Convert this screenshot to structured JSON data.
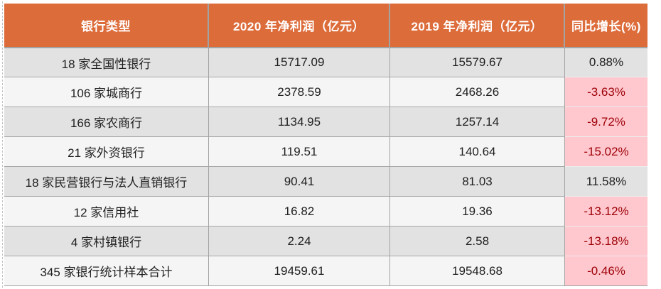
{
  "chart_data": {
    "type": "table",
    "columns": [
      "银行类型",
      "2020 年净利润（亿元）",
      "2019 年净利润（亿元）",
      "同比增长(%)"
    ],
    "rows": [
      [
        "18 家全国性银行",
        "15717.09",
        "15579.67",
        "0.88%"
      ],
      [
        "106 家城商行",
        "2378.59",
        "2468.26",
        "-3.63%"
      ],
      [
        "166 家农商行",
        "1134.95",
        "1257.14",
        "-9.72%"
      ],
      [
        "21 家外资银行",
        "119.51",
        "140.64",
        "-15.02%"
      ],
      [
        "18 家民营银行与法人直销银行",
        "90.41",
        "81.03",
        "11.58%"
      ],
      [
        "12 家信用社",
        "16.82",
        "19.36",
        "-13.12%"
      ],
      [
        "4 家村镇银行",
        "2.24",
        "2.58",
        "-13.18%"
      ],
      [
        "345 家银行统计样本合计",
        "19459.61",
        "19548.68",
        "-0.46%"
      ]
    ],
    "notes": "negative growth cells highlighted pink with dark-red text"
  },
  "table": {
    "headers": {
      "bank_type": "银行类型",
      "profit_2020": "2020 年净利润（亿元）",
      "profit_2019": "2019 年净利润（亿元）",
      "yoy_growth": "同比增长(%)"
    },
    "rows": [
      {
        "bank_type": "18 家全国性银行",
        "profit_2020": "15717.09",
        "profit_2019": "15579.67",
        "yoy_growth": "0.88%",
        "negative": false
      },
      {
        "bank_type": "106 家城商行",
        "profit_2020": "2378.59",
        "profit_2019": "2468.26",
        "yoy_growth": "-3.63%",
        "negative": true
      },
      {
        "bank_type": "166 家农商行",
        "profit_2020": "1134.95",
        "profit_2019": "1257.14",
        "yoy_growth": "-9.72%",
        "negative": true
      },
      {
        "bank_type": "21 家外资银行",
        "profit_2020": "119.51",
        "profit_2019": "140.64",
        "yoy_growth": "-15.02%",
        "negative": true
      },
      {
        "bank_type": "18 家民营银行与法人直销银行",
        "profit_2020": "90.41",
        "profit_2019": "81.03",
        "yoy_growth": "11.58%",
        "negative": false
      },
      {
        "bank_type": "12 家信用社",
        "profit_2020": "16.82",
        "profit_2019": "19.36",
        "yoy_growth": "-13.12%",
        "negative": true
      },
      {
        "bank_type": "4 家村镇银行",
        "profit_2020": "2.24",
        "profit_2019": "2.58",
        "yoy_growth": "-13.18%",
        "negative": true
      },
      {
        "bank_type": "345 家银行统计样本合计",
        "profit_2020": "19459.61",
        "profit_2019": "19548.68",
        "yoy_growth": "-0.46%",
        "negative": true
      }
    ],
    "colors": {
      "header_bg": "#dd6c3b",
      "header_text": "#ffffff",
      "row_even_bg": "#e2e2e2",
      "row_odd_bg": "#f5f5f5",
      "negative_bg": "#ffc7ce",
      "negative_text": "#9c0006",
      "grid_line": "#a3a3a3",
      "body_text": "#1f1f1f"
    }
  }
}
